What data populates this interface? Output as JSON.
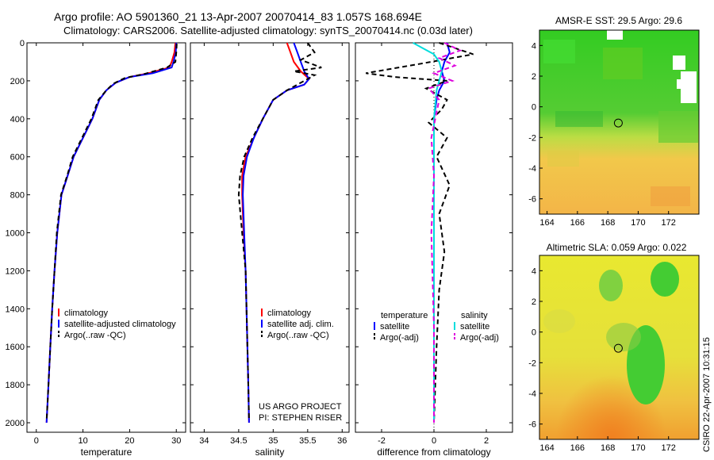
{
  "header": {
    "line1": "Argo profile: AO 5901360_21 13-Apr-2007 20070414_83 1.057S 168.694E",
    "line2": "Climatology: CARS2006. Satellite-adjusted climatology: synTS_20070414.nc (0.03d later)"
  },
  "footer": {
    "project": "US ARGO PROJECT",
    "pi": "PI: STEPHEN RISER",
    "stamp": "CSIRO 22-Apr-2007 10:31:15"
  },
  "colors": {
    "climatology": "#ff0000",
    "satellite": "#0000ff",
    "argo": "#000000",
    "diff_satellite": "#00dddd",
    "diff_salinity_argo": "#dd00dd"
  },
  "chart_data": [
    {
      "id": "temperature",
      "type": "line",
      "xlabel": "temperature",
      "ylabel": "",
      "xlim": [
        -2,
        32
      ],
      "ylim": [
        2050,
        0
      ],
      "y_inverted": true,
      "xticks": [
        0,
        10,
        20,
        30
      ],
      "yticks": [
        0,
        200,
        400,
        600,
        800,
        1000,
        1200,
        1400,
        1600,
        1800,
        2000
      ],
      "legend": [
        "climatology",
        "satellite-adjusted climatology",
        "Argo(..raw -QC)"
      ],
      "series": [
        {
          "name": "climatology",
          "style": "solid",
          "color": "#ff0000",
          "x": [
            29.8,
            29.6,
            29.0,
            28.5,
            24.0,
            20.0,
            17.0,
            15.0,
            13.5,
            12.0,
            10.0,
            8.0,
            6.7,
            5.4,
            4.5,
            3.9,
            3.4,
            3.0,
            2.6,
            2.2
          ],
          "y": [
            0,
            50,
            100,
            130,
            160,
            180,
            210,
            250,
            300,
            400,
            500,
            600,
            700,
            800,
            1000,
            1200,
            1400,
            1600,
            1800,
            2000
          ]
        },
        {
          "name": "satellite-adjusted climatology",
          "style": "solid",
          "color": "#0000ff",
          "x": [
            30.0,
            29.9,
            29.4,
            29.0,
            25.0,
            20.0,
            17.0,
            15.0,
            13.5,
            12.0,
            10.0,
            8.0,
            6.7,
            5.4,
            4.5,
            3.9,
            3.4,
            3.0,
            2.6,
            2.2
          ],
          "y": [
            0,
            50,
            100,
            130,
            160,
            180,
            210,
            250,
            300,
            400,
            500,
            600,
            700,
            800,
            1000,
            1200,
            1400,
            1600,
            1800,
            2000
          ]
        },
        {
          "name": "Argo(..raw -QC)",
          "style": "dashed",
          "color": "#000000",
          "x": [
            30.1,
            30.0,
            29.8,
            28.0,
            23.0,
            19.0,
            16.5,
            15.0,
            13.3,
            11.8,
            9.8,
            7.8,
            6.6,
            5.3,
            4.4,
            3.9,
            3.4,
            3.0,
            2.6,
            2.2
          ],
          "y": [
            5,
            50,
            100,
            130,
            165,
            185,
            215,
            250,
            300,
            400,
            500,
            600,
            700,
            800,
            1000,
            1200,
            1400,
            1600,
            1800,
            1990
          ]
        }
      ]
    },
    {
      "id": "salinity",
      "type": "line",
      "xlabel": "salinity",
      "ylabel": "",
      "xlim": [
        33.8,
        36.1
      ],
      "ylim": [
        2050,
        0
      ],
      "y_inverted": true,
      "xticks": [
        34,
        34.5,
        35,
        35.5,
        36
      ],
      "legend": [
        "climatology",
        "satellite adj. clim.",
        "Argo(..raw -QC)"
      ],
      "series": [
        {
          "name": "climatology",
          "style": "solid",
          "color": "#ff0000",
          "x": [
            35.2,
            35.25,
            35.3,
            35.4,
            35.52,
            35.45,
            35.2,
            35.0,
            34.85,
            34.72,
            34.6,
            34.55,
            34.55,
            34.57,
            34.6,
            34.62,
            34.64,
            34.65
          ],
          "y": [
            0,
            50,
            100,
            150,
            190,
            220,
            250,
            300,
            400,
            500,
            600,
            700,
            800,
            1000,
            1200,
            1500,
            1800,
            2000
          ]
        },
        {
          "name": "satellite adj. clim.",
          "style": "solid",
          "color": "#0000ff",
          "x": [
            35.3,
            35.35,
            35.4,
            35.45,
            35.52,
            35.45,
            35.2,
            35.0,
            34.85,
            34.72,
            34.62,
            34.57,
            34.56,
            34.58,
            34.6,
            34.62,
            34.64,
            34.65
          ],
          "y": [
            0,
            50,
            100,
            150,
            190,
            220,
            250,
            300,
            400,
            500,
            600,
            700,
            800,
            1000,
            1200,
            1500,
            1800,
            2000
          ]
        },
        {
          "name": "Argo(..raw -QC)",
          "style": "dashed",
          "color": "#000000",
          "x": [
            35.5,
            35.6,
            35.4,
            35.7,
            35.3,
            35.6,
            35.45,
            35.2,
            35.0,
            34.85,
            34.7,
            34.58,
            34.52,
            34.5,
            34.55,
            34.6,
            34.62,
            34.64,
            34.65
          ],
          "y": [
            0,
            50,
            90,
            130,
            150,
            170,
            200,
            250,
            300,
            400,
            500,
            600,
            700,
            800,
            1000,
            1200,
            1500,
            1800,
            1990
          ]
        }
      ]
    },
    {
      "id": "difference",
      "type": "line",
      "xlabel": "difference from climatology",
      "ylabel": "",
      "xlim": [
        -3,
        3
      ],
      "ylim": [
        2050,
        0
      ],
      "y_inverted": true,
      "xticks": [
        -2,
        0,
        2
      ],
      "legend": [
        "temperature",
        "satellite",
        "Argo(-adj)",
        "salinity",
        "satellite",
        "Argo(-adj)"
      ],
      "series": [
        {
          "name": "temperature satellite",
          "style": "solid",
          "color": "#0000ff",
          "x": [
            0.5,
            0.6,
            0.4,
            0.3,
            0.4,
            0.2,
            0.1,
            0.0,
            0.0,
            0.0,
            0.0,
            0.0,
            0.0
          ],
          "y": [
            0,
            50,
            100,
            150,
            200,
            250,
            300,
            400,
            600,
            800,
            1200,
            1600,
            2000
          ]
        },
        {
          "name": "temperature Argo(-adj)",
          "style": "dashed",
          "color": "#000000",
          "x": [
            0.2,
            1.5,
            -0.5,
            -2.6,
            -1.5,
            0.5,
            -0.3,
            0.5,
            0.3,
            -0.2,
            0.5,
            0.1,
            0.6,
            0.2,
            0.4,
            0.2,
            0.1,
            0.0
          ],
          "y": [
            0,
            60,
            110,
            160,
            180,
            200,
            240,
            300,
            350,
            420,
            500,
            600,
            750,
            900,
            1100,
            1300,
            1600,
            2000
          ]
        },
        {
          "name": "salinity satellite",
          "style": "solid",
          "color": "#00dddd",
          "x": [
            -0.8,
            -0.4,
            0.0,
            0.2,
            0.3,
            0.1,
            0.0,
            0.0,
            0.0,
            0.0,
            0.0
          ],
          "y": [
            0,
            30,
            60,
            100,
            150,
            250,
            400,
            700,
            1000,
            1500,
            2000
          ]
        },
        {
          "name": "salinity Argo(-adj)",
          "style": "dashed",
          "color": "#dd00dd",
          "x": [
            0.4,
            1.0,
            0.2,
            0.8,
            0.0,
            0.7,
            -0.2,
            0.2,
            -0.1,
            0.0,
            -0.1,
            0.0,
            0.0
          ],
          "y": [
            0,
            40,
            80,
            120,
            160,
            200,
            240,
            300,
            500,
            700,
            1000,
            1500,
            2000
          ]
        }
      ]
    },
    {
      "id": "sst_map",
      "type": "heatmap",
      "title": "AMSR-E SST: 29.5 Argo: 29.6",
      "xlim": [
        163.5,
        174
      ],
      "ylim": [
        -7,
        5
      ],
      "xticks": [
        164,
        166,
        168,
        170,
        172
      ],
      "yticks": [
        -6,
        -4,
        -2,
        0,
        2,
        4
      ],
      "argo_location": {
        "lon": 168.694,
        "lat": -1.057
      }
    },
    {
      "id": "sla_map",
      "type": "heatmap",
      "title": "Altimetric SLA: 0.059 Argo: 0.022",
      "xlim": [
        163.5,
        174
      ],
      "ylim": [
        -7,
        5
      ],
      "xticks": [
        164,
        166,
        168,
        170,
        172
      ],
      "yticks": [
        -6,
        -4,
        -2,
        0,
        2,
        4
      ],
      "argo_location": {
        "lon": 168.694,
        "lat": -1.057
      }
    }
  ]
}
